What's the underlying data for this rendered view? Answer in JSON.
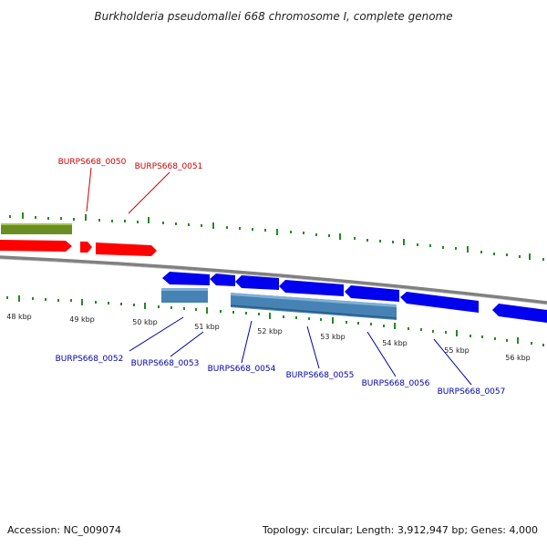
{
  "title": "Burkholderia pseudomallei 668 chromosome I, complete genome",
  "footer": {
    "accession": "Accession: NC_009074",
    "summary": "Topology: circular; Length: 3,912,947 bp; Genes: 4,000"
  },
  "colors": {
    "backbone": "#808080",
    "plus_cds": "#ff0000",
    "plus_other": "#6b8e23",
    "minus_cds": "#0000ee",
    "minus_other": "#4682b4",
    "ticks": "#228b22",
    "plus_label": "#cc0000",
    "minus_label": "#0000aa"
  },
  "scale_labels": [
    "48 kbp",
    "49 kbp",
    "50 kbp",
    "51 kbp",
    "52 kbp",
    "53 kbp",
    "54 kbp",
    "55 kbp",
    "56 kbp"
  ],
  "gene_labels": {
    "plus": [
      "BURPS668_0050",
      "BURPS668_0051"
    ],
    "minus": [
      "BURPS668_0052",
      "BURPS668_0053",
      "BURPS668_0054",
      "BURPS668_0055",
      "BURPS668_0056",
      "BURPS668_0057"
    ]
  }
}
